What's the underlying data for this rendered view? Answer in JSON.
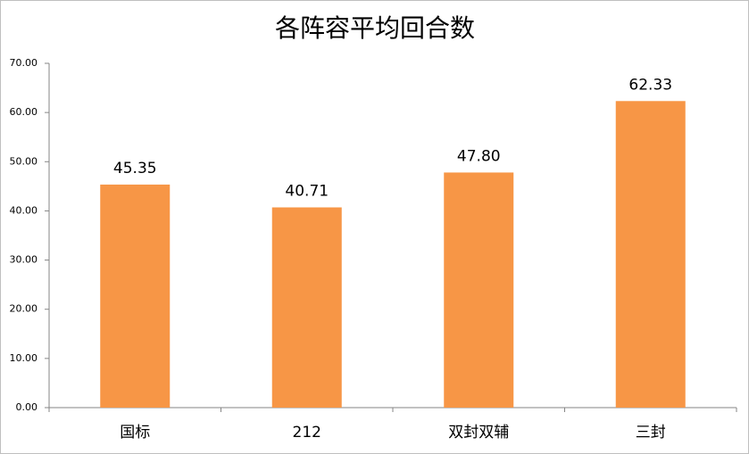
{
  "chart_data": {
    "type": "bar",
    "title": "各阵容平均回合数",
    "categories": [
      "国标",
      "212",
      "双封双辅",
      "三封"
    ],
    "values": [
      45.35,
      40.71,
      47.8,
      62.33
    ],
    "value_labels": [
      "45.35",
      "40.71",
      "47.80",
      "62.33"
    ],
    "color": "#f79646",
    "ylim": [
      0,
      70
    ],
    "yticks": [
      {
        "value": 0,
        "label": "0.00"
      },
      {
        "value": 10,
        "label": "10.00"
      },
      {
        "value": 20,
        "label": "20.00"
      },
      {
        "value": 30,
        "label": "30.00"
      },
      {
        "value": 40,
        "label": "40.00"
      },
      {
        "value": 50,
        "label": "50.00"
      },
      {
        "value": 60,
        "label": "60.00"
      },
      {
        "value": 70,
        "label": "70.00"
      }
    ],
    "grid": false
  }
}
